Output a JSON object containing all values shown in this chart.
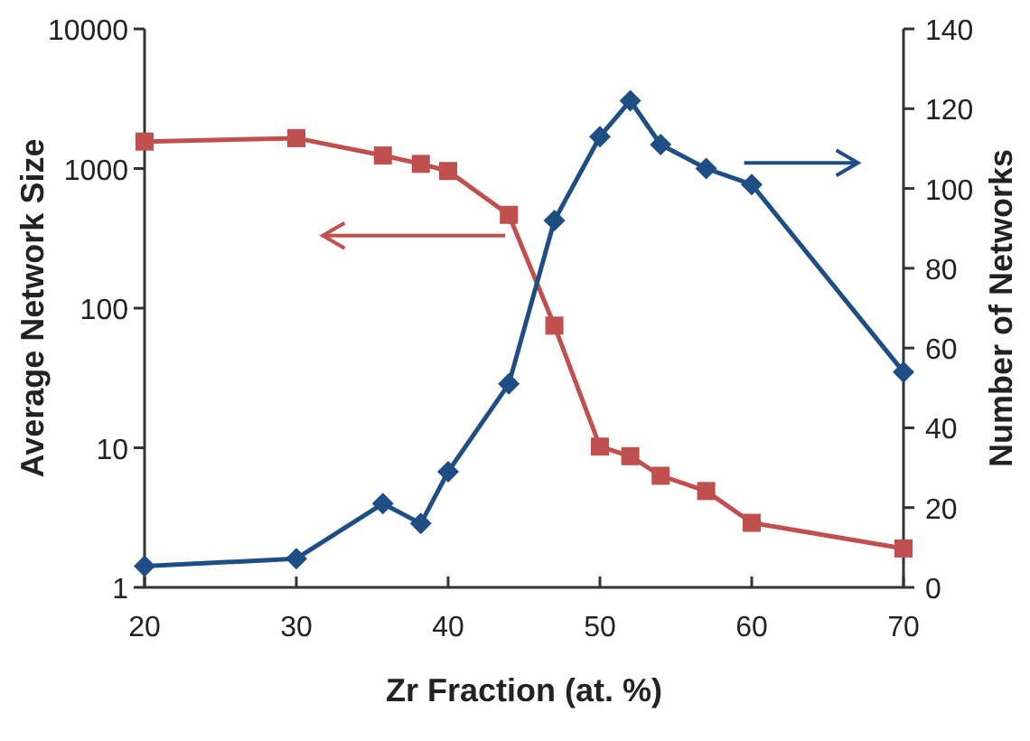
{
  "chart_data": {
    "type": "line",
    "xlabel": "Zr Fraction (at. %)",
    "ylabel": "Average Network Size",
    "y2label": "Number of Networks",
    "x": [
      20,
      30,
      35.7,
      38.2,
      40,
      44,
      47,
      50,
      52,
      54,
      57,
      60,
      70
    ],
    "series": [
      {
        "color": "#c0504d",
        "marker": "square",
        "values": [
          1560,
          1650,
          1240,
          1080,
          960,
          466,
          75,
          10.2,
          8.7,
          6.3,
          4.9,
          2.9,
          1.9
        ]
      },
      {
        "color": "#1f4e85",
        "marker": "diamond",
        "axis": "y2",
        "values": [
          5.3,
          7.2,
          21,
          16,
          29,
          51,
          92,
          113,
          122,
          111,
          105,
          101,
          54
        ]
      }
    ],
    "xlim": [
      20,
      70
    ],
    "xticks": [
      20,
      30,
      40,
      50,
      60,
      70
    ],
    "ylim": [
      1,
      10000
    ],
    "yticks": [
      1,
      10,
      100,
      1000,
      10000
    ],
    "log": "y",
    "y2lim": [
      0,
      140
    ],
    "y2ticks": [
      0,
      20,
      40,
      60,
      80,
      100,
      120,
      140
    ],
    "grid": false,
    "line_style": "solid"
  }
}
